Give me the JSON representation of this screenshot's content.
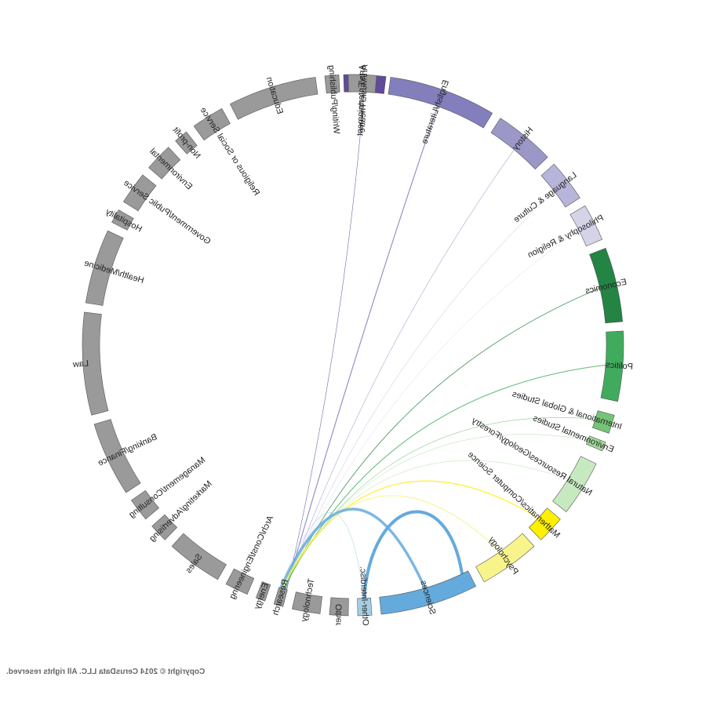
{
  "copyright": "Copyright © 2014 CerusData LLC.  All rights reserved.",
  "colors": {
    "employment": "#9a9a9a",
    "arts": "#614a9a",
    "english": "#837fbd",
    "history": "#9b98c8",
    "language": "#b7b5da",
    "philosophy": "#d4d3e8",
    "economics": "#238443",
    "politics": "#41ab5d",
    "intl": "#74c476",
    "envstudies": "#a1d99b",
    "natres": "#c7e9c0",
    "math": "#ffef00",
    "psych": "#f7f48b",
    "sciences": "#65aadd",
    "interdisc": "#a6cee3"
  },
  "majors": [
    {
      "name": "Art/Music/Theatre",
      "color_key": "arts"
    },
    {
      "name": "English/Literature",
      "color_key": "english"
    },
    {
      "name": "History",
      "color_key": "history"
    },
    {
      "name": "Language & Culture",
      "color_key": "language"
    },
    {
      "name": "Philosophy & Religion",
      "color_key": "philosophy"
    },
    {
      "name": "Economics",
      "color_key": "economics"
    },
    {
      "name": "Politics",
      "color_key": "politics"
    },
    {
      "name": "International & Global Studies",
      "color_key": "intl"
    },
    {
      "name": "Environmental Studies",
      "color_key": "envstudies"
    },
    {
      "name": "Natural Resources/Geology/Forestry",
      "color_key": "natres"
    },
    {
      "name": "Mathematics/Computer Science",
      "color_key": "math"
    },
    {
      "name": "Psychology",
      "color_key": "psych"
    },
    {
      "name": "Sciences",
      "color_key": "sciences"
    },
    {
      "name": "Other-Interdisc.",
      "color_key": "interdisc"
    }
  ],
  "careers": [
    {
      "name": "Other"
    },
    {
      "name": "Technology"
    },
    {
      "name": "Research"
    },
    {
      "name": "Energy"
    },
    {
      "name": "Arch/Const/Engineering"
    },
    {
      "name": "Sales"
    },
    {
      "name": "Marketing/Advertising"
    },
    {
      "name": "Management/Consulting"
    },
    {
      "name": "Banking/Finance"
    },
    {
      "name": "Law"
    },
    {
      "name": "Health/Medicine"
    },
    {
      "name": "Hospitality"
    },
    {
      "name": "Government/Public Service"
    },
    {
      "name": "Environmental"
    },
    {
      "name": "Non-profit"
    },
    {
      "name": "Religious or Social Service"
    },
    {
      "name": "Education"
    },
    {
      "name": "Writing/Publishing"
    },
    {
      "name": "Arts/Entertainment"
    }
  ]
}
